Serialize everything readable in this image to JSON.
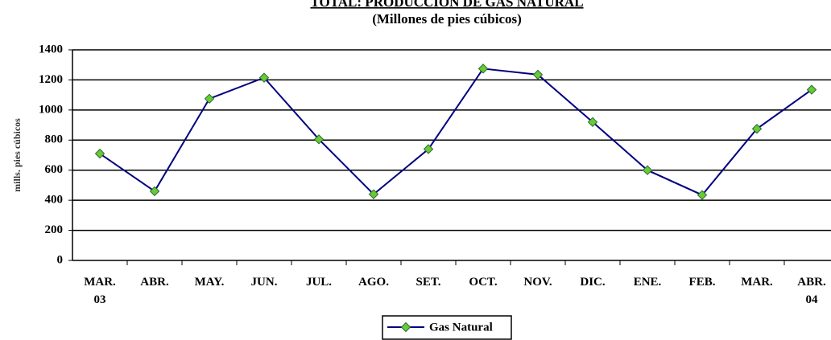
{
  "chart_data": {
    "type": "line",
    "title": "TOTAL: PRODUCCION DE GAS NATURAL",
    "subtitle": "(Millones de pies cúbicos)",
    "y_label": "mills. pies cúbicos",
    "categories": [
      "MAR.\n03",
      "ABR.",
      "MAY.",
      "JUN.",
      "JUL.",
      "AGO.",
      "SET.",
      "OCT.",
      "NOV.",
      "DIC.",
      "ENE.",
      "FEB.",
      "MAR.",
      "ABR.\n04"
    ],
    "series": [
      {
        "name": "Gas Natural",
        "color": "#000080",
        "marker_color": "#66cc33",
        "values": [
          710,
          460,
          1075,
          1215,
          805,
          440,
          740,
          1275,
          1235,
          920,
          600,
          435,
          875,
          1135
        ]
      }
    ],
    "ylim": [
      0,
      1400
    ],
    "yticks": [
      0,
      200,
      400,
      600,
      800,
      1000,
      1200,
      1400
    ],
    "grid": true
  }
}
